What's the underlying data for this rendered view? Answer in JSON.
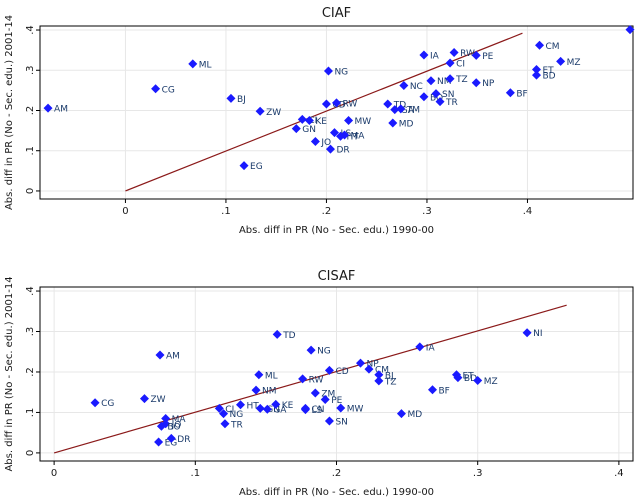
{
  "chart_data": [
    {
      "type": "scatter",
      "title": "CIAF",
      "xlabel": "Abs. diff in PR (No - Sec. edu.) 1990-00",
      "ylabel": "Abs. diff in PR (No - Sec. edu.) 2001-14",
      "xlim": [
        -0.085,
        0.505
      ],
      "ylim": [
        -0.02,
        0.41
      ],
      "xticks": [
        0,
        0.1,
        0.2,
        0.3,
        0.4
      ],
      "xtick_labels": [
        "0",
        ".1",
        ".2",
        ".3",
        ".4"
      ],
      "yticks": [
        0,
        0.1,
        0.2,
        0.3,
        0.4
      ],
      "ytick_labels": [
        "0",
        ".1",
        ".2",
        ".3",
        ".4"
      ],
      "grid": true,
      "marker_color": "#1a1aff",
      "line_color": "#8b1a1a",
      "fit_line": {
        "x": [
          0.0,
          0.395
        ],
        "y": [
          0.0,
          0.392
        ]
      },
      "points": [
        {
          "label": "AM",
          "x": -0.077,
          "y": 0.206
        },
        {
          "label": "CG",
          "x": 0.03,
          "y": 0.254
        },
        {
          "label": "ML",
          "x": 0.067,
          "y": 0.316
        },
        {
          "label": "BJ",
          "x": 0.105,
          "y": 0.23
        },
        {
          "label": "EG",
          "x": 0.118,
          "y": 0.063
        },
        {
          "label": "ZW",
          "x": 0.134,
          "y": 0.198
        },
        {
          "label": "GN",
          "x": 0.17,
          "y": 0.155
        },
        {
          "label": "CI",
          "x": 0.176,
          "y": 0.178
        },
        {
          "label": "KE",
          "x": 0.183,
          "y": 0.175
        },
        {
          "label": "JO",
          "x": 0.189,
          "y": 0.123
        },
        {
          "label": "NG",
          "x": 0.202,
          "y": 0.298
        },
        {
          "label": "CD",
          "x": 0.2,
          "y": 0.216
        },
        {
          "label": "RW",
          "x": 0.21,
          "y": 0.219
        },
        {
          "label": "LS",
          "x": 0.208,
          "y": 0.145
        },
        {
          "label": "DR",
          "x": 0.204,
          "y": 0.104
        },
        {
          "label": "HT",
          "x": 0.214,
          "y": 0.136
        },
        {
          "label": "MA",
          "x": 0.218,
          "y": 0.139
        },
        {
          "label": "MW",
          "x": 0.222,
          "y": 0.175
        },
        {
          "label": "TD",
          "x": 0.261,
          "y": 0.216
        },
        {
          "label": "GA",
          "x": 0.268,
          "y": 0.202
        },
        {
          "label": "TM",
          "x": 0.274,
          "y": 0.204
        },
        {
          "label": "MD",
          "x": 0.266,
          "y": 0.169
        },
        {
          "label": "NC",
          "x": 0.277,
          "y": 0.262
        },
        {
          "label": "BO",
          "x": 0.297,
          "y": 0.234
        },
        {
          "label": "TR",
          "x": 0.313,
          "y": 0.222
        },
        {
          "label": "SN",
          "x": 0.309,
          "y": 0.242
        },
        {
          "label": "NM",
          "x": 0.304,
          "y": 0.274
        },
        {
          "label": "TZ",
          "x": 0.323,
          "y": 0.279
        },
        {
          "label": "IA",
          "x": 0.297,
          "y": 0.338
        },
        {
          "label": "RW",
          "x": 0.327,
          "y": 0.344
        },
        {
          "label": "CI",
          "x": 0.323,
          "y": 0.318
        },
        {
          "label": "PE",
          "x": 0.349,
          "y": 0.337
        },
        {
          "label": "NP",
          "x": 0.349,
          "y": 0.269
        },
        {
          "label": "BF",
          "x": 0.383,
          "y": 0.244
        },
        {
          "label": "CM",
          "x": 0.412,
          "y": 0.362
        },
        {
          "label": "ET",
          "x": 0.409,
          "y": 0.302
        },
        {
          "label": "BD",
          "x": 0.409,
          "y": 0.288
        },
        {
          "label": "MZ",
          "x": 0.433,
          "y": 0.322
        },
        {
          "label": "N",
          "x": 0.502,
          "y": 0.401
        }
      ]
    },
    {
      "type": "scatter",
      "title": "CISAF",
      "xlabel": "Abs. diff in PR (No - Sec. edu.) 1990-00",
      "ylabel": "Abs. diff in PR (No - Sec. edu.) 2001-14",
      "xlim": [
        -0.01,
        0.41
      ],
      "ylim": [
        -0.02,
        0.41
      ],
      "xticks": [
        0,
        0.1,
        0.2,
        0.3,
        0.4
      ],
      "xtick_labels": [
        "0",
        ".1",
        ".2",
        ".3",
        ".4"
      ],
      "yticks": [
        0,
        0.1,
        0.2,
        0.3,
        0.4
      ],
      "ytick_labels": [
        "0",
        ".1",
        ".2",
        ".3",
        ".4"
      ],
      "grid": true,
      "marker_color": "#1a1aff",
      "line_color": "#8b1a1a",
      "fit_line": {
        "x": [
          0.0,
          0.363
        ],
        "y": [
          0.0,
          0.365
        ]
      },
      "points": [
        {
          "label": "CG",
          "x": 0.029,
          "y": 0.124
        },
        {
          "label": "ZW",
          "x": 0.064,
          "y": 0.134
        },
        {
          "label": "AM",
          "x": 0.075,
          "y": 0.242
        },
        {
          "label": "MA",
          "x": 0.079,
          "y": 0.085
        },
        {
          "label": "JO",
          "x": 0.079,
          "y": 0.072
        },
        {
          "label": "BO",
          "x": 0.076,
          "y": 0.066
        },
        {
          "label": "EG",
          "x": 0.074,
          "y": 0.027
        },
        {
          "label": "DR",
          "x": 0.083,
          "y": 0.036
        },
        {
          "label": "CI",
          "x": 0.117,
          "y": 0.11
        },
        {
          "label": "HT",
          "x": 0.132,
          "y": 0.119
        },
        {
          "label": "NG",
          "x": 0.12,
          "y": 0.097
        },
        {
          "label": "TR",
          "x": 0.121,
          "y": 0.072
        },
        {
          "label": "NM",
          "x": 0.143,
          "y": 0.155
        },
        {
          "label": "ML",
          "x": 0.145,
          "y": 0.193
        },
        {
          "label": "GN",
          "x": 0.146,
          "y": 0.11
        },
        {
          "label": "GA",
          "x": 0.151,
          "y": 0.108
        },
        {
          "label": "KE",
          "x": 0.157,
          "y": 0.12
        },
        {
          "label": "TD",
          "x": 0.158,
          "y": 0.293
        },
        {
          "label": "RW",
          "x": 0.176,
          "y": 0.183
        },
        {
          "label": "NG",
          "x": 0.182,
          "y": 0.254
        },
        {
          "label": "CD",
          "x": 0.195,
          "y": 0.204
        },
        {
          "label": "ZM",
          "x": 0.185,
          "y": 0.148
        },
        {
          "label": "PE",
          "x": 0.192,
          "y": 0.132
        },
        {
          "label": "LS",
          "x": 0.178,
          "y": 0.107
        },
        {
          "label": "CN",
          "x": 0.178,
          "y": 0.11
        },
        {
          "label": "SN",
          "x": 0.195,
          "y": 0.079
        },
        {
          "label": "MW",
          "x": 0.203,
          "y": 0.111
        },
        {
          "label": "NP",
          "x": 0.217,
          "y": 0.222
        },
        {
          "label": "CM",
          "x": 0.223,
          "y": 0.207
        },
        {
          "label": "BJ",
          "x": 0.23,
          "y": 0.193
        },
        {
          "label": "TZ",
          "x": 0.23,
          "y": 0.178
        },
        {
          "label": "MD",
          "x": 0.246,
          "y": 0.097
        },
        {
          "label": "IA",
          "x": 0.259,
          "y": 0.262
        },
        {
          "label": "BF",
          "x": 0.268,
          "y": 0.156
        },
        {
          "label": "ET",
          "x": 0.285,
          "y": 0.193
        },
        {
          "label": "BD",
          "x": 0.286,
          "y": 0.186
        },
        {
          "label": "MZ",
          "x": 0.3,
          "y": 0.179
        },
        {
          "label": "NI",
          "x": 0.335,
          "y": 0.297
        }
      ]
    }
  ]
}
